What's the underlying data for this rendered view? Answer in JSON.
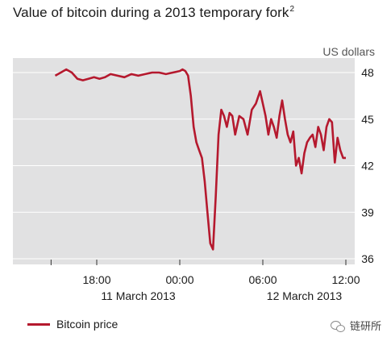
{
  "title": "Value of bitcoin during a 2013 temporary fork",
  "title_footnote": "2",
  "watermark": "链研所",
  "chart_data": {
    "type": "line",
    "title": "Value of bitcoin during a 2013 temporary fork",
    "ylabel": "US dollars",
    "ylim": [
      36,
      49
    ],
    "yticks": [
      "36",
      "39",
      "42",
      "45",
      "48"
    ],
    "ytick_values": [
      36,
      39,
      42,
      45,
      48
    ],
    "xlim": [
      14.5,
      36.2
    ],
    "xtick_values": [
      18,
      24,
      30,
      36
    ],
    "xtick_labels": [
      "18:00",
      "00:00",
      "06:00",
      "12:00"
    ],
    "date_labels": [
      {
        "text": "11 March 2013",
        "at": 21
      },
      {
        "text": "12 March 2013",
        "at": 33
      }
    ],
    "grid": "horizontal",
    "legend": "bottom-left",
    "colors": {
      "line": "#b5192e",
      "plot_bg": "#e1e1e2",
      "grid": "#ffffff"
    },
    "series": [
      {
        "name": "Bitcoin price",
        "x": [
          15.0,
          15.4,
          15.8,
          16.2,
          16.6,
          17.0,
          17.4,
          17.8,
          18.2,
          18.6,
          19.0,
          19.5,
          20.0,
          20.5,
          21.0,
          21.5,
          22.0,
          22.5,
          23.0,
          23.5,
          24.0,
          24.2,
          24.4,
          24.6,
          24.8,
          25.0,
          25.2,
          25.4,
          25.6,
          25.8,
          26.0,
          26.2,
          26.4,
          26.6,
          26.8,
          27.0,
          27.2,
          27.4,
          27.6,
          27.8,
          28.0,
          28.3,
          28.6,
          28.9,
          29.2,
          29.5,
          29.8,
          30.0,
          30.2,
          30.4,
          30.6,
          30.8,
          31.0,
          31.2,
          31.4,
          31.6,
          31.8,
          32.0,
          32.2,
          32.4,
          32.6,
          32.8,
          33.0,
          33.2,
          33.4,
          33.6,
          33.8,
          34.0,
          34.2,
          34.4,
          34.6,
          34.8,
          35.0,
          35.2,
          35.4,
          35.6,
          35.8,
          36.0
        ],
        "values": [
          47.8,
          48.0,
          48.2,
          48.0,
          47.6,
          47.5,
          47.6,
          47.7,
          47.6,
          47.7,
          47.9,
          47.8,
          47.7,
          47.9,
          47.8,
          47.9,
          48.0,
          48.0,
          47.9,
          48.0,
          48.1,
          48.2,
          48.1,
          47.8,
          46.5,
          44.5,
          43.5,
          43.0,
          42.5,
          41.0,
          39.0,
          37.0,
          36.6,
          40.0,
          44.0,
          45.6,
          45.2,
          44.5,
          45.4,
          45.2,
          44.0,
          45.2,
          45.0,
          44.0,
          45.6,
          46.0,
          46.8,
          46.0,
          45.2,
          44.0,
          45.0,
          44.5,
          43.8,
          45.2,
          46.2,
          45.0,
          44.0,
          43.5,
          44.2,
          42.0,
          42.5,
          41.5,
          42.8,
          43.5,
          43.8,
          44.0,
          43.2,
          44.5,
          44.0,
          43.0,
          44.5,
          45.0,
          44.8,
          42.2,
          43.8,
          43.0,
          42.5,
          42.5
        ]
      }
    ]
  }
}
